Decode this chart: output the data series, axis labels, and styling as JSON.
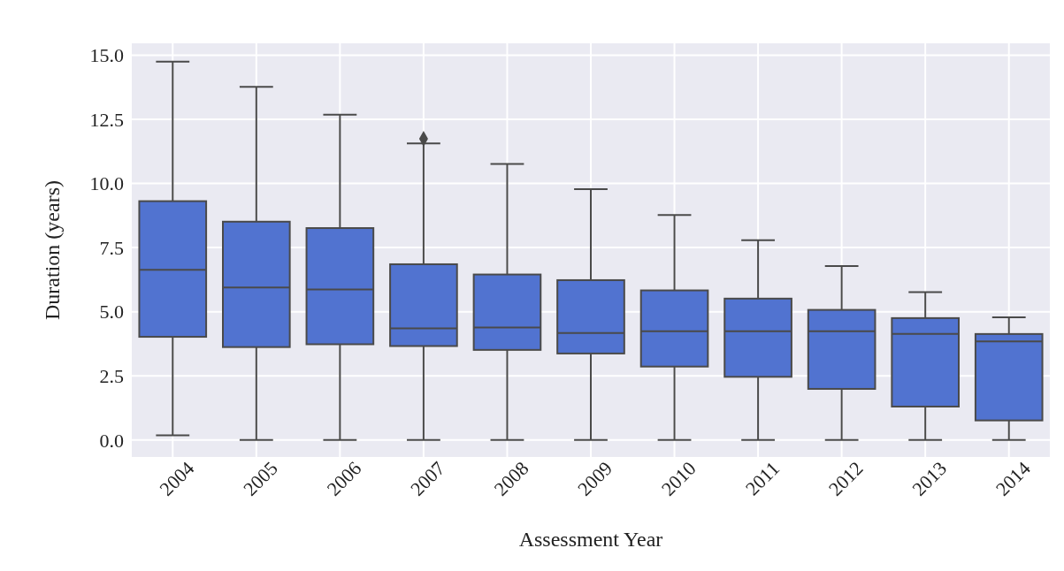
{
  "chart_data": {
    "type": "box",
    "xlabel": "Assessment Year",
    "ylabel": "Duration (years)",
    "categories": [
      "2004",
      "2005",
      "2006",
      "2007",
      "2008",
      "2009",
      "2010",
      "2011",
      "2012",
      "2013",
      "2014"
    ],
    "color": "#5173d0",
    "boxes": [
      {
        "low": 0.18,
        "q1": 4.02,
        "median": 6.63,
        "q3": 9.31,
        "high": 14.75
      },
      {
        "low": 0,
        "q1": 3.62,
        "median": 5.94,
        "q3": 8.51,
        "high": 13.77
      },
      {
        "low": 0,
        "q1": 3.73,
        "median": 5.87,
        "q3": 8.26,
        "high": 12.68
      },
      {
        "low": 0,
        "q1": 3.66,
        "median": 4.35,
        "q3": 6.85,
        "high": 11.56,
        "outliers": [
          11.74
        ]
      },
      {
        "low": 0,
        "q1": 3.51,
        "median": 4.38,
        "q3": 6.45,
        "high": 10.76
      },
      {
        "low": 0,
        "q1": 3.37,
        "median": 4.17,
        "q3": 6.23,
        "high": 9.78
      },
      {
        "low": 0,
        "q1": 2.86,
        "median": 4.24,
        "q3": 5.83,
        "high": 8.77
      },
      {
        "low": 0,
        "q1": 2.46,
        "median": 4.24,
        "q3": 5.51,
        "high": 7.79
      },
      {
        "low": 0,
        "q1": 1.99,
        "median": 4.24,
        "q3": 5.07,
        "high": 6.78
      },
      {
        "low": 0,
        "q1": 1.3,
        "median": 4.13,
        "q3": 4.75,
        "high": 5.76
      },
      {
        "low": 0,
        "q1": 0.76,
        "median": 3.84,
        "q3": 4.13,
        "high": 4.78
      }
    ],
    "ylim": [
      -0.7,
      15.5
    ],
    "yticks": [
      {
        "value": 0,
        "label": "0.0"
      },
      {
        "value": 2.5,
        "label": "2.5"
      },
      {
        "value": 5,
        "label": "5.0"
      },
      {
        "value": 7.5,
        "label": "7.5"
      },
      {
        "value": 10,
        "label": "10.0"
      },
      {
        "value": 12.5,
        "label": "12.5"
      },
      {
        "value": 15,
        "label": "15.0"
      }
    ],
    "grid": true
  }
}
